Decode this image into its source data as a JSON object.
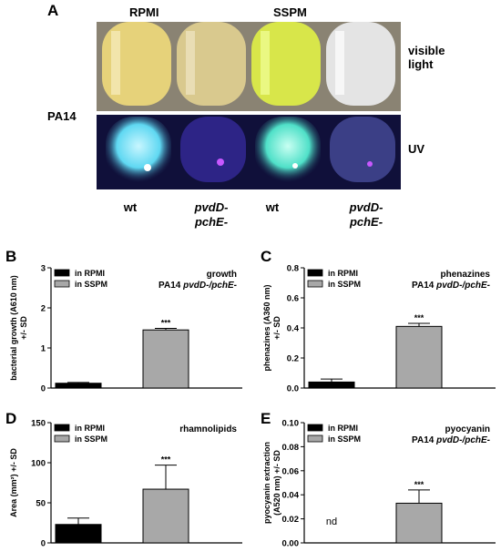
{
  "panel_a": {
    "letter": "A",
    "header_rpmi": "RPMI",
    "header_sspm": "SSPM",
    "strain_label": "PA14",
    "visible_label_line1": "visible",
    "visible_label_line2": "light",
    "uv_label": "UV",
    "strains": [
      {
        "line1": "wt",
        "line2": ""
      },
      {
        "line1": "pvdD-",
        "line2": "pchE-"
      },
      {
        "line1": "wt",
        "line2": ""
      },
      {
        "line1": "pvdD-",
        "line2": "pchE-"
      }
    ],
    "tube_colors_visible": [
      "#e6d27a",
      "#d9c98e",
      "#d8e64a",
      "#dcdcdc"
    ],
    "tube_colors_uv": [
      "#5fd8f2",
      "#4a3fb8",
      "#4fe0c8",
      "#7a86c8"
    ],
    "uv_background": "#10103a",
    "visible_background": "#8a8373"
  },
  "chart_data": [
    {
      "panel": "B",
      "type": "bar",
      "categories": [
        "in RPMI",
        "in SSPM"
      ],
      "values": [
        0.12,
        1.45
      ],
      "errors": [
        0.02,
        0.04
      ],
      "ylim": [
        0,
        3
      ],
      "yticks": [
        "0",
        "1",
        "2",
        "3"
      ],
      "ytick_values": [
        0,
        1,
        2,
        3
      ],
      "ylabel_line1": "bacterial growth (A610 nm)",
      "ylabel_line2": "+/- SD",
      "title_line1": "growth",
      "title_line2_prefix": "PA14 ",
      "title_line2_italic": "pvdD-/pchE-",
      "legend": [
        "in RPMI",
        "in SSPM"
      ],
      "bar_colors": [
        "#000000",
        "#a8a8a8"
      ],
      "significance": "***",
      "nd_text": ""
    },
    {
      "panel": "C",
      "type": "bar",
      "categories": [
        "in RPMI",
        "in SSPM"
      ],
      "values": [
        0.04,
        0.41
      ],
      "errors": [
        0.02,
        0.02
      ],
      "ylim": [
        0,
        0.8
      ],
      "yticks": [
        "0.0",
        "0.2",
        "0.4",
        "0.6",
        "0.8"
      ],
      "ytick_values": [
        0,
        0.2,
        0.4,
        0.6,
        0.8
      ],
      "ylabel_line1": "phenazines (A360 nm)",
      "ylabel_line2": "+/- SD",
      "title_line1": "phenazines",
      "title_line2_prefix": "PA14 ",
      "title_line2_italic": "pvdD-/pchE-",
      "legend": [
        "in RPMI",
        "in SSPM"
      ],
      "bar_colors": [
        "#000000",
        "#a8a8a8"
      ],
      "significance": "***",
      "nd_text": ""
    },
    {
      "panel": "D",
      "type": "bar",
      "categories": [
        "in RPMI",
        "in SSPM"
      ],
      "values": [
        23,
        67
      ],
      "errors": [
        8,
        30
      ],
      "ylim": [
        0,
        150
      ],
      "yticks": [
        "0",
        "50",
        "100",
        "150"
      ],
      "ytick_values": [
        0,
        50,
        100,
        150
      ],
      "ylabel_line1": "Area (mm²) +/- SD",
      "ylabel_line2": "",
      "title_line1": "rhamnolipids",
      "title_line2_prefix": "",
      "title_line2_italic": "",
      "legend": [
        "in RPMI",
        "in SSPM"
      ],
      "bar_colors": [
        "#000000",
        "#a8a8a8"
      ],
      "significance": "***",
      "nd_text": ""
    },
    {
      "panel": "E",
      "type": "bar",
      "categories": [
        "in RPMI",
        "in SSPM"
      ],
      "values": [
        null,
        0.033
      ],
      "errors": [
        0,
        0.011
      ],
      "ylim": [
        0,
        0.1
      ],
      "yticks": [
        "0.00",
        "0.02",
        "0.04",
        "0.06",
        "0.08",
        "0.10"
      ],
      "ytick_values": [
        0,
        0.02,
        0.04,
        0.06,
        0.08,
        0.1
      ],
      "ylabel_line1": "pyocyanin extraction",
      "ylabel_line2": "(A520 nm) +/- SD",
      "title_line1": "pyocyanin",
      "title_line2_prefix": "PA14 ",
      "title_line2_italic": "pvdD-/pchE-",
      "legend": [
        "in RPMI",
        "in SSPM"
      ],
      "bar_colors": [
        "#000000",
        "#a8a8a8"
      ],
      "significance": "***",
      "nd_text": "nd"
    }
  ]
}
